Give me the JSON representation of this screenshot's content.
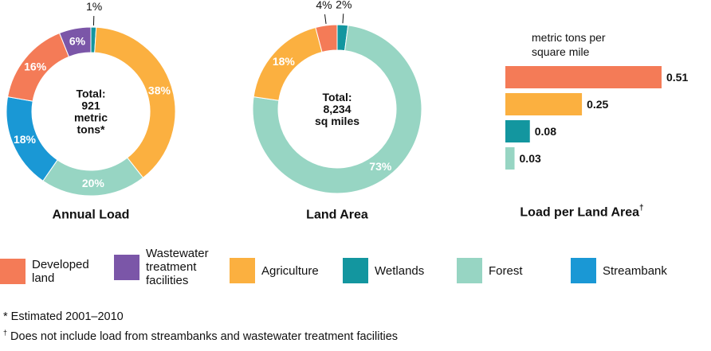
{
  "colors": {
    "developed": "#f47b57",
    "wastewater": "#7b56a8",
    "agriculture": "#fbb040",
    "wetlands": "#13969f",
    "forest": "#97d5c3",
    "streambank": "#1a98d5"
  },
  "chart_data": [
    {
      "type": "pie",
      "title": "Annual Load",
      "center_label": [
        "Total:",
        "921",
        "metric",
        "tons*"
      ],
      "slices": [
        {
          "category": "wetlands",
          "value": 1,
          "label": "1%"
        },
        {
          "category": "agriculture",
          "value": 38,
          "label": "38%"
        },
        {
          "category": "forest",
          "value": 20,
          "label": "20%"
        },
        {
          "category": "streambank",
          "value": 18,
          "label": "18%"
        },
        {
          "category": "developed",
          "value": 16,
          "label": "16%"
        },
        {
          "category": "wastewater",
          "value": 6,
          "label": "6%"
        }
      ]
    },
    {
      "type": "pie",
      "title": "Land Area",
      "center_label": [
        "Total:",
        "8,234",
        "sq miles"
      ],
      "slices": [
        {
          "category": "wetlands",
          "value": 2,
          "label": "2%"
        },
        {
          "category": "forest",
          "value": 73,
          "label": "73%"
        },
        {
          "category": "agriculture",
          "value": 18,
          "label": "18%"
        },
        {
          "category": "developed",
          "value": 4,
          "label": "4%"
        }
      ]
    },
    {
      "type": "bar",
      "title": "Load per Land Area",
      "title_mark": "†",
      "unit_label": [
        "metric tons per",
        "square mile"
      ],
      "bars": [
        {
          "category": "developed",
          "value": 0.51,
          "label": "0.51"
        },
        {
          "category": "agriculture",
          "value": 0.25,
          "label": "0.25"
        },
        {
          "category": "wetlands",
          "value": 0.08,
          "label": "0.08"
        },
        {
          "category": "forest",
          "value": 0.03,
          "label": "0.03"
        }
      ]
    }
  ],
  "legend": [
    {
      "category": "developed",
      "label": "Developed\nland"
    },
    {
      "category": "wastewater",
      "label": "Wastewater\ntreatment\nfacilities"
    },
    {
      "category": "agriculture",
      "label": "Agriculture"
    },
    {
      "category": "wetlands",
      "label": "Wetlands"
    },
    {
      "category": "forest",
      "label": "Forest"
    },
    {
      "category": "streambank",
      "label": "Streambank"
    }
  ],
  "footnotes": {
    "estimated": "* Estimated 2001–2010",
    "dagger_mark": "†",
    "dagger_text": " Does not include load from streambanks and wastewater treatment  facilities"
  }
}
